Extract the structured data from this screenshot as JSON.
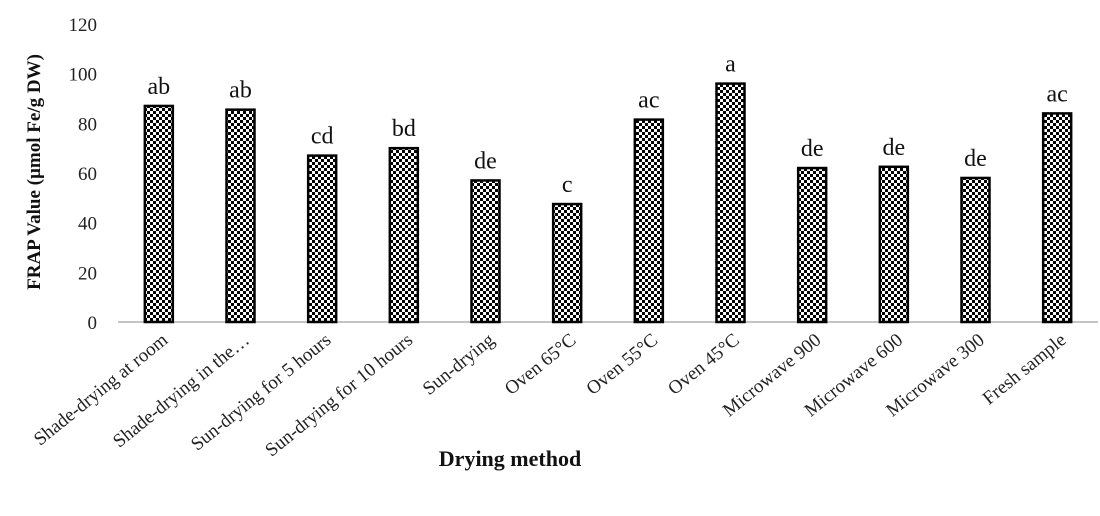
{
  "chart_data": {
    "type": "bar",
    "xlabel": "Drying method",
    "ylabel": "FRAP Value (µmol Fe/g DW)",
    "ylim": [
      0,
      120
    ],
    "yticks": [
      0,
      20,
      40,
      60,
      80,
      100,
      120
    ],
    "grid": false,
    "legend": "none",
    "bar_fill": "checkered black and white",
    "categories": [
      "Shade-drying at room",
      "Shade-drying in the…",
      "Sun-drying for 5 hours",
      "Sun-drying for 10 hours",
      "Sun-drying",
      "Oven 65°C",
      "Oven 55°C",
      "Oven 45°C",
      "Microwave 900",
      "Microwave 600",
      "Microwave 300",
      "Fresh sample"
    ],
    "values": [
      87,
      85.5,
      67,
      70,
      57,
      47.5,
      81.5,
      96,
      62,
      62.5,
      58,
      84
    ],
    "annotations": [
      "ab",
      "ab",
      "cd",
      "bd",
      "de",
      "c",
      "ac",
      "a",
      "de",
      "de",
      "de",
      "ac"
    ]
  }
}
